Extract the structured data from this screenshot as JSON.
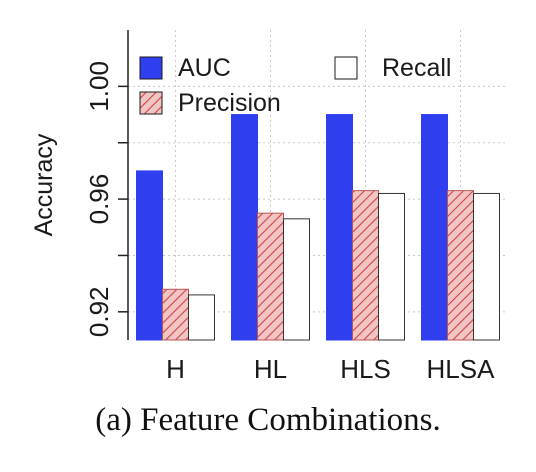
{
  "chart_data": {
    "type": "bar",
    "categories": [
      "H",
      "HL",
      "HLS",
      "HLSA"
    ],
    "series": [
      {
        "name": "AUC",
        "values": [
          0.97,
          0.99,
          0.99,
          0.99
        ],
        "color": "#2f3ff0",
        "pattern": "solid"
      },
      {
        "name": "Precision",
        "values": [
          0.928,
          0.955,
          0.963,
          0.963
        ],
        "color": "#f2c4c4",
        "pattern": "hatched",
        "hatch_color": "#cc4444"
      },
      {
        "name": "Recall",
        "values": [
          0.926,
          0.953,
          0.962,
          0.962
        ],
        "color": "#ffffff",
        "pattern": "outline"
      }
    ],
    "ylabel": "Accuracy",
    "xlabel": "",
    "ylim": [
      0.91,
      1.02
    ],
    "yticks": [
      "0.92",
      "0.96",
      "1.00"
    ],
    "ytick_values": [
      0.92,
      0.96,
      1.0
    ],
    "grid": true,
    "legend_position": "top"
  },
  "caption": "(a) Feature Combinations."
}
